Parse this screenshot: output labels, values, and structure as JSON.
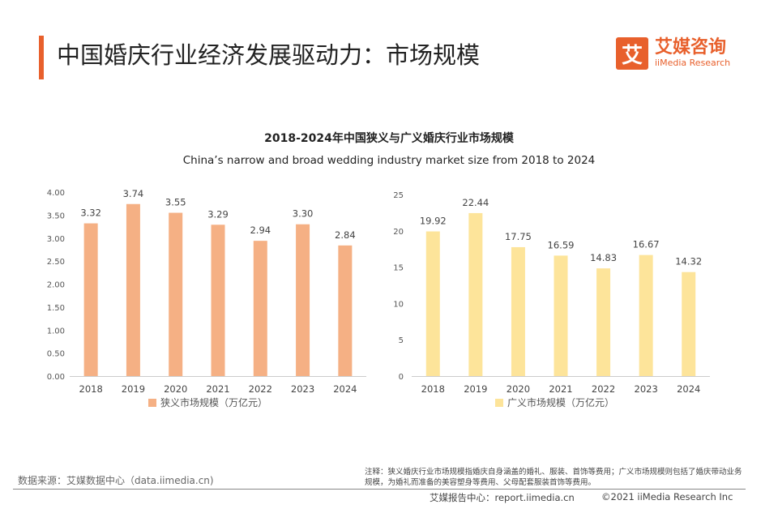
{
  "header": {
    "title": "中国婚庆行业经济发展驱动力：市场规模",
    "logo_mark": "艾",
    "logo_cn": "艾媒咨询",
    "logo_en": "iiMedia Research"
  },
  "chart_data": {
    "title": "2018-2024年中国狭义与广义婚庆行业市场规模",
    "subtitle": "China’s narrow and broad wedding industry market size from 2018 to 2024",
    "charts": [
      {
        "type": "bar",
        "categories": [
          "2018",
          "2019",
          "2020",
          "2021",
          "2022",
          "2023",
          "2024"
        ],
        "values": [
          3.32,
          3.74,
          3.55,
          3.29,
          2.94,
          3.3,
          2.84
        ],
        "value_labels": [
          "3.32",
          "3.74",
          "3.55",
          "3.29",
          "2.94",
          "3.30",
          "2.84"
        ],
        "ylim": [
          0,
          4
        ],
        "yticks": [
          "0.00",
          "0.50",
          "1.00",
          "1.50",
          "2.00",
          "2.50",
          "3.00",
          "3.50",
          "4.00"
        ],
        "legend": "狭义市场规模（万亿元）",
        "color": "#f5b084"
      },
      {
        "type": "bar",
        "categories": [
          "2018",
          "2019",
          "2020",
          "2021",
          "2022",
          "2023",
          "2024"
        ],
        "values": [
          19.92,
          22.44,
          17.75,
          16.59,
          14.83,
          16.67,
          14.32
        ],
        "value_labels": [
          "19.92",
          "22.44",
          "17.75",
          "16.59",
          "14.83",
          "16.67",
          "14.32"
        ],
        "ylim": [
          0,
          25
        ],
        "yticks": [
          "0",
          "5",
          "10",
          "15",
          "20",
          "25"
        ],
        "legend": "广义市场规模（万亿元）",
        "color": "#fde49a"
      }
    ]
  },
  "footer": {
    "source": "数据来源：艾媒数据中心（data.iimedia.cn)",
    "note": "注释：狭义婚庆行业市场规模指婚庆自身涵盖的婚礼、服装、首饰等费用；广义市场规模则包括了婚庆带动业务规模，为婚礼而准备的美容塑身等费用、父母配套服装首饰等费用。",
    "report": "艾媒报告中心：report.iimedia.cn",
    "copyright": "©2021  iiMedia Research  Inc"
  }
}
